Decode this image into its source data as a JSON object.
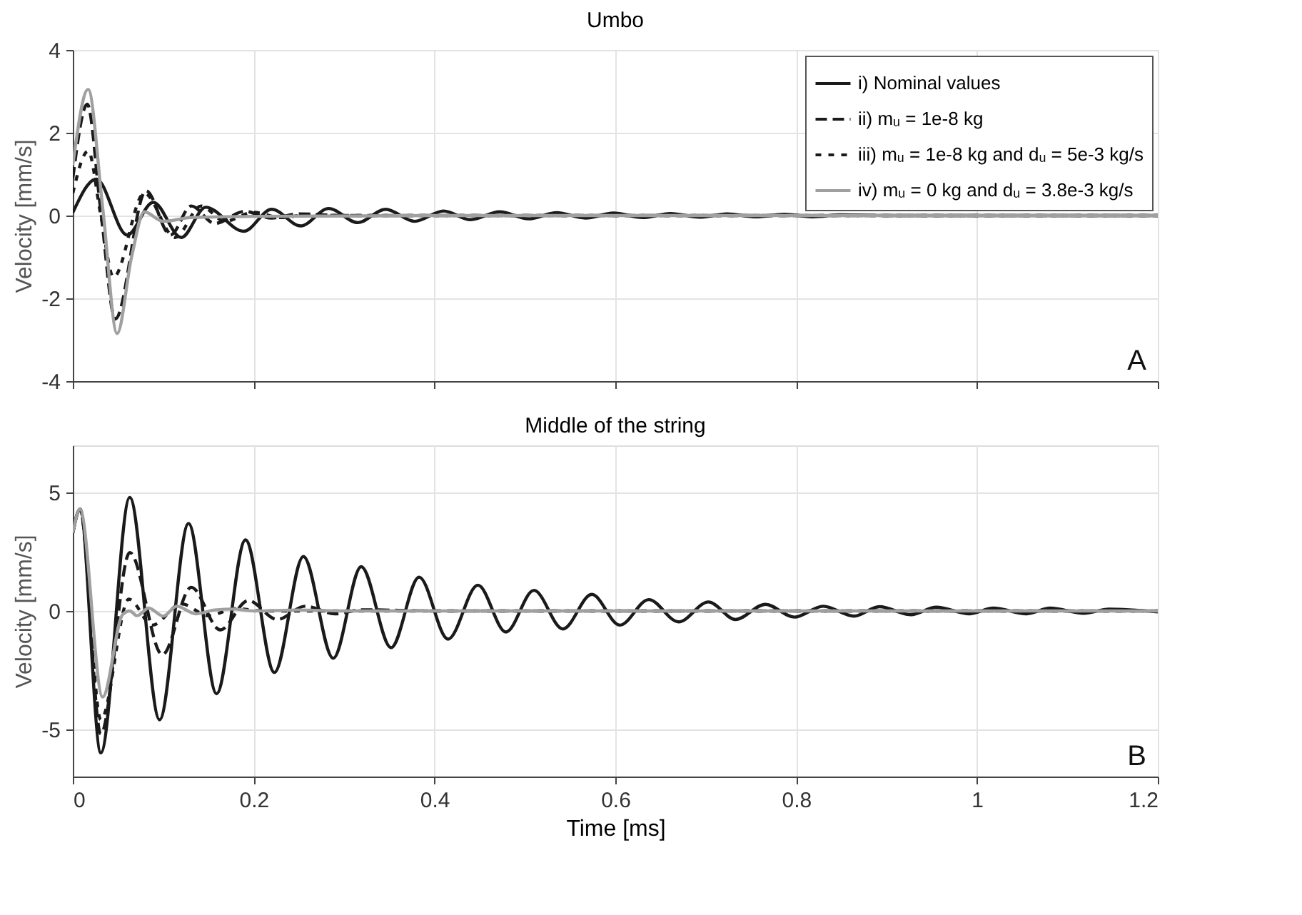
{
  "chart_data": [
    {
      "type": "line",
      "title": "Umbo",
      "ylabel": "Velocity [mm/s]",
      "xlim": [
        0,
        1.2
      ],
      "xticks": [
        0,
        0.2,
        0.4,
        0.6,
        0.8,
        1,
        1.2
      ],
      "ylim": [
        -4,
        4
      ],
      "yticks": [
        -4,
        -2,
        0,
        2,
        4
      ],
      "grid": true,
      "legend": "top right",
      "tick_labels": "y",
      "annotations": [
        "A"
      ],
      "series": [
        {
          "name": "i) Nominal values",
          "color": "#1a1a1a",
          "line_style": "solid",
          "x": [
            0,
            0.026,
            0.06,
            0.089,
            0.12,
            0.147,
            0.189,
            0.22,
            0.252,
            0.283,
            0.315,
            0.346,
            0.378,
            0.41,
            0.44,
            0.472,
            0.504,
            0.535,
            0.567,
            0.598,
            0.63,
            0.661,
            0.693,
            0.724,
            0.756,
            0.787,
            0.819,
            0.85,
            0.9,
            1.0,
            1.2
          ],
          "values": [
            0.07,
            0.88,
            -0.47,
            0.32,
            -0.53,
            0.2,
            -0.38,
            0.15,
            -0.25,
            0.17,
            -0.17,
            0.15,
            -0.14,
            0.11,
            -0.1,
            0.09,
            -0.08,
            0.07,
            -0.06,
            0.06,
            -0.05,
            0.05,
            -0.04,
            0.04,
            -0.03,
            0.03,
            -0.03,
            0.02,
            0,
            0,
            0
          ]
        },
        {
          "name": "ii) mᵤ = 1e-8 kg",
          "color": "#1a1a1a",
          "line_style": "dashed",
          "x": [
            0,
            0.016,
            0.031,
            0.047,
            0.081,
            0.108,
            0.131,
            0.157,
            0.19,
            0.22,
            0.25,
            0.3,
            1.2
          ],
          "values": [
            0.9,
            2.69,
            0.1,
            -2.5,
            0.6,
            -0.47,
            0.23,
            -0.19,
            0.1,
            -0.06,
            0.04,
            0,
            0
          ]
        },
        {
          "name": "iii) mᵤ = 1e-8 kg and dᵤ = 5e-3 kg/s",
          "color": "#1a1a1a",
          "line_style": "dotted",
          "x": [
            0,
            0.017,
            0.031,
            0.045,
            0.079,
            0.113,
            0.142,
            0.168,
            0.2,
            0.23,
            0.26,
            0.3,
            1.2
          ],
          "values": [
            0.54,
            1.56,
            0,
            -1.49,
            0.54,
            -0.53,
            0.23,
            -0.14,
            0.08,
            -0.05,
            0.02,
            0,
            0
          ]
        },
        {
          "name": "iv) mᵤ = 0 kg and dᵤ = 3.8e-3 kg/s",
          "color": "#a0a0a0",
          "line_style": "solid",
          "x": [
            0,
            0.017,
            0.033,
            0.049,
            0.065,
            0.079,
            0.1,
            0.13,
            0.2,
            0.4,
            1.2
          ],
          "values": [
            1.22,
            3.05,
            0.2,
            -2.85,
            -1.0,
            0.09,
            -0.14,
            -0.05,
            -0.02,
            0,
            0
          ]
        }
      ]
    },
    {
      "type": "line",
      "title": "Middle of the string",
      "xlabel": "Time [ms]",
      "ylabel": "Velocity [mm/s]",
      "xlim": [
        0,
        1.2
      ],
      "xticks": [
        0,
        0.2,
        0.4,
        0.6,
        0.8,
        1,
        1.2
      ],
      "ylim": [
        -7,
        7
      ],
      "yticks": [
        -5,
        0,
        5
      ],
      "grid": true,
      "annotations": [
        "B"
      ],
      "series": [
        {
          "color": "#1a1a1a",
          "line_style": "solid",
          "x": [
            0,
            0.008,
            0.031,
            0.063,
            0.096,
            0.128,
            0.159,
            0.191,
            0.223,
            0.255,
            0.288,
            0.319,
            0.352,
            0.383,
            0.415,
            0.448,
            0.479,
            0.51,
            0.542,
            0.574,
            0.605,
            0.637,
            0.67,
            0.703,
            0.733,
            0.766,
            0.798,
            0.83,
            0.864,
            0.892,
            0.927,
            0.955,
            0.992,
            1.018,
            1.055,
            1.081,
            1.118,
            1.146,
            1.2
          ],
          "values": [
            3.3,
            4.3,
            -6.0,
            4.8,
            -4.6,
            3.7,
            -3.5,
            3.0,
            -2.6,
            2.3,
            -2.0,
            1.87,
            -1.55,
            1.43,
            -1.19,
            1.09,
            -0.89,
            0.87,
            -0.76,
            0.7,
            -0.6,
            0.48,
            -0.46,
            0.38,
            -0.36,
            0.28,
            -0.26,
            0.2,
            -0.22,
            0.18,
            -0.16,
            0.16,
            -0.12,
            0.12,
            -0.12,
            0.12,
            -0.1,
            0.08,
            -0.04
          ]
        },
        {
          "color": "#1a1a1a",
          "line_style": "dashed",
          "x": [
            0,
            0.008,
            0.031,
            0.063,
            0.099,
            0.131,
            0.163,
            0.194,
            0.226,
            0.257,
            0.29,
            0.32,
            0.4,
            1.2
          ],
          "values": [
            3.3,
            4.3,
            -5.2,
            2.47,
            -1.85,
            1.0,
            -0.8,
            0.44,
            -0.36,
            0.2,
            -0.12,
            0.05,
            0,
            0
          ]
        },
        {
          "color": "#1a1a1a",
          "line_style": "dotted",
          "x": [
            0,
            0.008,
            0.031,
            0.062,
            0.088,
            0.12,
            0.15,
            0.18,
            0.21,
            1.2
          ],
          "values": [
            3.3,
            4.3,
            -4.6,
            0.5,
            -0.6,
            0.3,
            -0.2,
            0.1,
            0,
            0
          ]
        },
        {
          "color": "#a0a0a0",
          "line_style": "solid",
          "x": [
            0,
            0.008,
            0.033,
            0.055,
            0.063,
            0.071,
            0.084,
            0.1,
            0.115,
            0.136,
            0.157,
            0.178,
            0.2,
            0.25,
            0.3,
            1.2
          ],
          "values": [
            3.3,
            4.3,
            -3.64,
            -0.16,
            0,
            -0.2,
            0.12,
            -0.22,
            0.2,
            -0.12,
            0.04,
            0.08,
            0,
            0.04,
            0,
            0
          ]
        }
      ]
    }
  ]
}
